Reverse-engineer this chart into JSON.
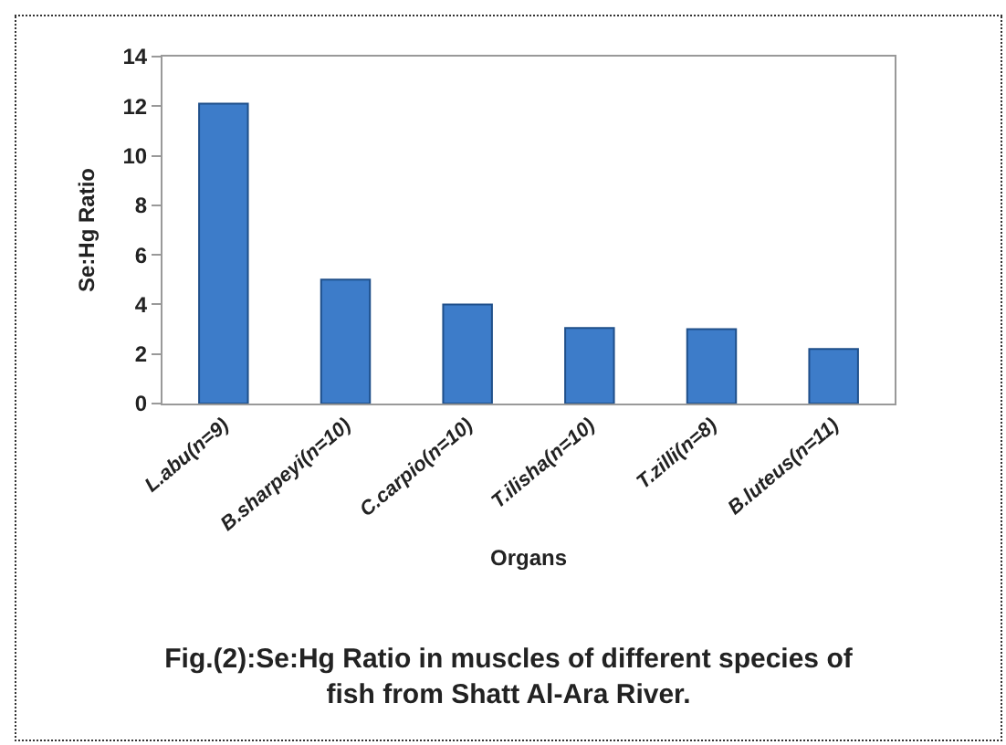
{
  "chart_data": {
    "type": "bar",
    "title": "Fig.(2):Se:Hg Ratio in muscles of different species of\nfish from Shatt Al-Ara River.",
    "xlabel": "Organs",
    "ylabel": "Se:Hg Ratio",
    "categories": [
      "L.abu(n=9)",
      "B.sharpeyi(n=10)",
      "C.carpio(n=10)",
      "T.ilisha(n=10)",
      "T.zilli(n=8)",
      "B.luteus(n=11)"
    ],
    "values": [
      12.1,
      5.0,
      4.0,
      3.05,
      3.0,
      2.2
    ],
    "color": "#3d7cc9",
    "ylim": [
      0,
      14
    ],
    "yticks": [
      0,
      2,
      4,
      6,
      8,
      10,
      12,
      14
    ],
    "grid": false,
    "legend": false
  }
}
